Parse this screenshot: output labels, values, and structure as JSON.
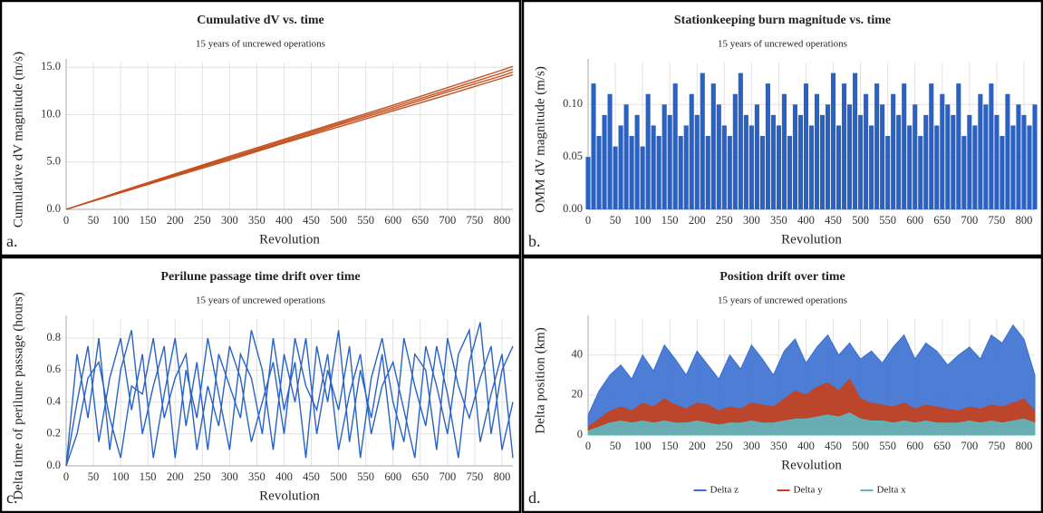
{
  "chart_data": [
    {
      "type": "line",
      "label": "a.",
      "title": "Cumulative dV vs. time",
      "subtitle": "15 years of uncrewed operations",
      "xlabel": "Revolution",
      "ylabel": "Cumulative dV magnitude (m/s)",
      "grid": true,
      "xlim": [
        0,
        820
      ],
      "xticks": [
        0,
        50,
        100,
        150,
        200,
        250,
        300,
        350,
        400,
        450,
        500,
        550,
        600,
        650,
        700,
        750,
        800
      ],
      "ylim": [
        0,
        15.5
      ],
      "yticks": [
        {
          "value": 0,
          "label": "0.0"
        },
        {
          "value": 5,
          "label": "5.0"
        },
        {
          "value": 10,
          "label": "10.0"
        },
        {
          "value": 15,
          "label": "15.0"
        }
      ],
      "x": [
        0,
        100,
        200,
        300,
        400,
        500,
        600,
        700,
        800,
        820
      ],
      "series": [
        {
          "color": "#c4501f",
          "values": [
            0,
            1.75,
            3.5,
            5.2,
            7.0,
            8.7,
            10.4,
            12.1,
            13.85,
            14.2
          ]
        },
        {
          "color": "#c4501f",
          "values": [
            0,
            1.8,
            3.6,
            5.35,
            7.1,
            8.9,
            10.6,
            12.4,
            14.1,
            14.5
          ]
        },
        {
          "color": "#c4501f",
          "values": [
            0,
            1.85,
            3.7,
            5.45,
            7.25,
            9.05,
            10.8,
            12.6,
            14.4,
            14.8
          ]
        },
        {
          "color": "#c4501f",
          "values": [
            0,
            1.9,
            3.75,
            5.6,
            7.4,
            9.2,
            11.0,
            12.85,
            14.7,
            15.1
          ]
        }
      ]
    },
    {
      "type": "bar",
      "label": "b.",
      "title": "Stationkeeping burn magnitude vs. time",
      "subtitle": "15 years of uncrewed operations",
      "xlabel": "Revolution",
      "ylabel": "OMM dV magnitude (m/s)",
      "grid": true,
      "color": "#2a62c4",
      "xlim": [
        0,
        820
      ],
      "xticks": [
        0,
        50,
        100,
        150,
        200,
        250,
        300,
        350,
        400,
        450,
        500,
        550,
        600,
        650,
        700,
        750,
        800
      ],
      "ylim": [
        0,
        0.14
      ],
      "yticks": [
        {
          "value": 0,
          "label": "0.00"
        },
        {
          "value": 0.05,
          "label": "0.05"
        },
        {
          "value": 0.1,
          "label": "0.10"
        }
      ],
      "x": [
        0,
        10,
        20,
        30,
        40,
        50,
        60,
        70,
        80,
        90,
        100,
        110,
        120,
        130,
        140,
        150,
        160,
        170,
        180,
        190,
        200,
        210,
        220,
        230,
        240,
        250,
        260,
        270,
        280,
        290,
        300,
        310,
        320,
        330,
        340,
        350,
        360,
        370,
        380,
        390,
        400,
        410,
        420,
        430,
        440,
        450,
        460,
        470,
        480,
        490,
        500,
        510,
        520,
        530,
        540,
        550,
        560,
        570,
        580,
        590,
        600,
        610,
        620,
        630,
        640,
        650,
        660,
        670,
        680,
        690,
        700,
        710,
        720,
        730,
        740,
        750,
        760,
        770,
        780,
        790,
        800,
        810,
        820
      ],
      "values": [
        0.05,
        0.12,
        0.07,
        0.09,
        0.11,
        0.06,
        0.08,
        0.1,
        0.07,
        0.09,
        0.06,
        0.11,
        0.08,
        0.07,
        0.1,
        0.09,
        0.12,
        0.07,
        0.08,
        0.11,
        0.09,
        0.13,
        0.07,
        0.12,
        0.1,
        0.08,
        0.07,
        0.11,
        0.13,
        0.09,
        0.08,
        0.1,
        0.07,
        0.12,
        0.09,
        0.08,
        0.11,
        0.07,
        0.1,
        0.09,
        0.12,
        0.08,
        0.11,
        0.09,
        0.1,
        0.13,
        0.08,
        0.12,
        0.1,
        0.13,
        0.09,
        0.11,
        0.08,
        0.12,
        0.1,
        0.07,
        0.11,
        0.09,
        0.12,
        0.08,
        0.1,
        0.07,
        0.09,
        0.12,
        0.08,
        0.11,
        0.1,
        0.09,
        0.12,
        0.07,
        0.09,
        0.08,
        0.11,
        0.1,
        0.12,
        0.09,
        0.07,
        0.11,
        0.08,
        0.1,
        0.09,
        0.08,
        0.1
      ]
    },
    {
      "type": "line",
      "label": "c.",
      "title": "Perilune passage time drift over time",
      "subtitle": "15 years of uncrewed operations",
      "xlabel": "Revolution",
      "ylabel": "Delta time of perilune passage (hours)",
      "grid": true,
      "xlim": [
        0,
        820
      ],
      "xticks": [
        0,
        50,
        100,
        150,
        200,
        250,
        300,
        350,
        400,
        450,
        500,
        550,
        600,
        650,
        700,
        750,
        800
      ],
      "ylim": [
        0,
        0.92
      ],
      "yticks": [
        {
          "value": 0,
          "label": "0.0"
        },
        0.2,
        0.4,
        0.6,
        0.8
      ],
      "x": [
        0,
        20,
        40,
        60,
        80,
        100,
        120,
        140,
        160,
        180,
        200,
        220,
        240,
        260,
        280,
        300,
        320,
        340,
        360,
        380,
        400,
        420,
        440,
        460,
        480,
        500,
        520,
        540,
        560,
        580,
        600,
        620,
        640,
        660,
        680,
        700,
        720,
        740,
        760,
        780,
        800,
        820
      ],
      "series": [
        {
          "color": "#2a62c4",
          "values": [
            0,
            0.7,
            0.3,
            0.8,
            0.1,
            0.6,
            0.85,
            0.2,
            0.5,
            0.75,
            0.05,
            0.6,
            0.3,
            0.8,
            0.45,
            0.1,
            0.7,
            0.55,
            0.2,
            0.8,
            0.35,
            0.65,
            0.05,
            0.75,
            0.4,
            0.85,
            0.15,
            0.6,
            0.3,
            0.7,
            0.1,
            0.8,
            0.5,
            0.25,
            0.75,
            0.45,
            0.05,
            0.65,
            0.9,
            0.2,
            0.6,
            0.75
          ]
        },
        {
          "color": "#2a62c4",
          "values": [
            0,
            0.4,
            0.75,
            0.15,
            0.55,
            0.8,
            0.35,
            0.7,
            0.05,
            0.45,
            0.8,
            0.25,
            0.65,
            0.1,
            0.7,
            0.5,
            0.3,
            0.85,
            0.6,
            0.1,
            0.7,
            0.4,
            0.8,
            0.2,
            0.6,
            0.35,
            0.75,
            0.05,
            0.55,
            0.8,
            0.4,
            0.15,
            0.7,
            0.6,
            0.1,
            0.8,
            0.5,
            0.3,
            0.55,
            0.75,
            0.1,
            0.4
          ]
        },
        {
          "color": "#2a62c4",
          "values": [
            0,
            0.2,
            0.55,
            0.65,
            0.3,
            0.05,
            0.5,
            0.45,
            0.8,
            0.3,
            0.55,
            0.7,
            0.1,
            0.5,
            0.25,
            0.75,
            0.55,
            0.15,
            0.4,
            0.65,
            0.2,
            0.8,
            0.5,
            0.35,
            0.7,
            0.1,
            0.45,
            0.7,
            0.2,
            0.5,
            0.65,
            0.35,
            0.05,
            0.75,
            0.5,
            0.2,
            0.7,
            0.85,
            0.15,
            0.45,
            0.7,
            0.05
          ]
        }
      ]
    },
    {
      "type": "area",
      "label": "d.",
      "title": "Position drift over time",
      "subtitle": "15 years of uncrewed operations",
      "xlabel": "Revolution",
      "ylabel": "Delta position (km)",
      "grid": true,
      "legend": "bottom",
      "xlim": [
        0,
        820
      ],
      "xticks": [
        0,
        50,
        100,
        150,
        200,
        250,
        300,
        350,
        400,
        450,
        500,
        550,
        600,
        650,
        700,
        750,
        800
      ],
      "ylim": [
        0,
        58
      ],
      "yticks": [
        0,
        20,
        40
      ],
      "x": [
        0,
        20,
        40,
        60,
        80,
        100,
        120,
        140,
        160,
        180,
        200,
        220,
        240,
        260,
        280,
        300,
        320,
        340,
        360,
        380,
        400,
        420,
        440,
        460,
        480,
        500,
        520,
        540,
        560,
        580,
        600,
        620,
        640,
        660,
        680,
        700,
        720,
        740,
        760,
        780,
        800,
        820
      ],
      "series": [
        {
          "name": "Delta z",
          "color": "#3a6fd0",
          "values": [
            10,
            22,
            30,
            35,
            28,
            40,
            32,
            45,
            38,
            30,
            42,
            35,
            28,
            40,
            33,
            45,
            38,
            30,
            42,
            48,
            36,
            44,
            50,
            40,
            46,
            38,
            42,
            36,
            44,
            50,
            38,
            46,
            42,
            35,
            40,
            44,
            38,
            50,
            46,
            55,
            48,
            30
          ]
        },
        {
          "name": "Delta y",
          "color": "#c8401a",
          "values": [
            4,
            8,
            12,
            14,
            12,
            16,
            14,
            18,
            15,
            13,
            16,
            15,
            12,
            14,
            13,
            16,
            15,
            14,
            18,
            22,
            20,
            24,
            26,
            22,
            28,
            18,
            16,
            15,
            14,
            16,
            13,
            15,
            14,
            13,
            12,
            14,
            13,
            15,
            14,
            16,
            18,
            12
          ]
        },
        {
          "name": "Delta x",
          "color": "#5fb8c0",
          "values": [
            2,
            4,
            6,
            7,
            6,
            7,
            6,
            7,
            6,
            6,
            7,
            6,
            5,
            6,
            6,
            7,
            6,
            6,
            7,
            8,
            8,
            9,
            10,
            9,
            11,
            8,
            7,
            7,
            6,
            7,
            6,
            7,
            6,
            6,
            6,
            7,
            6,
            7,
            6,
            7,
            8,
            6
          ]
        }
      ]
    }
  ]
}
